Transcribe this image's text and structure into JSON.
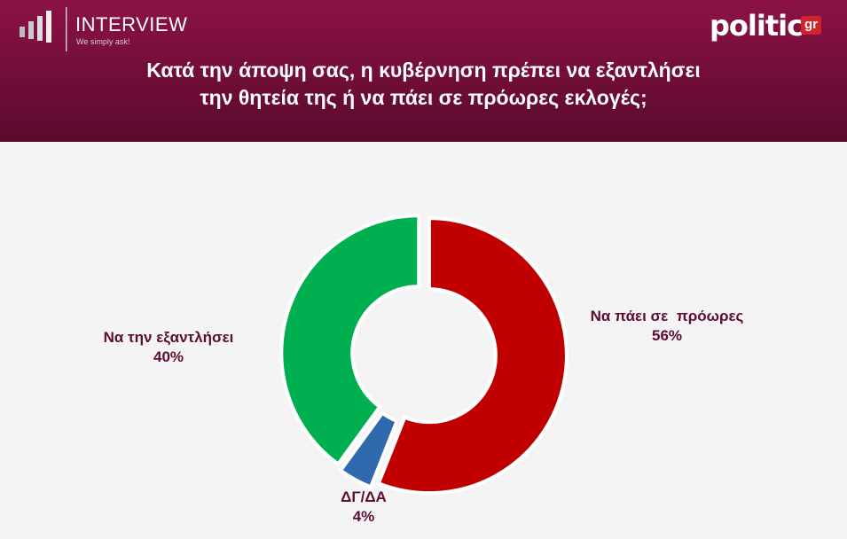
{
  "branding": {
    "left_name": "INTERVIEW",
    "left_tagline": "We simply ask!",
    "right_name": "politic",
    "right_suffix": "gr"
  },
  "chart_data": {
    "type": "donut",
    "title": "Κατά την άποψη σας, η κυβέρνηση πρέπει να εξαντλήσει την θητεία της ή να πάει σε πρόωρες εκλογές;",
    "categories": [
      "Να πάει σε  πρόωρες",
      "ΔΓ/ΔΑ",
      "Να την εξαντλήσει"
    ],
    "values": [
      56,
      4,
      40
    ],
    "value_labels": [
      "56%",
      "4%",
      "40%"
    ],
    "colors": [
      "#c00000",
      "#2e6aad",
      "#00b050"
    ]
  }
}
